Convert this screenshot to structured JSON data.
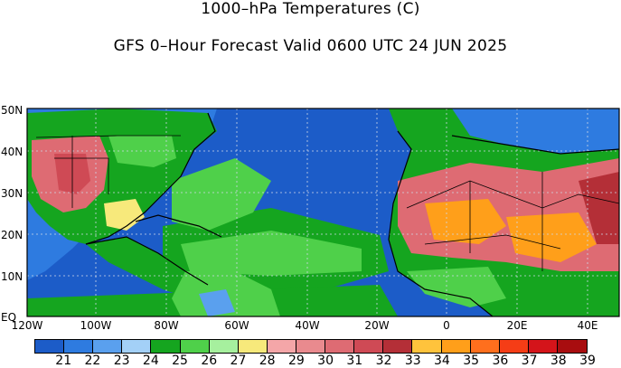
{
  "title": "1000–hPa Temperatures (C)",
  "subtitle": "GFS 0–Hour Forecast Valid 0600 UTC 24 JUN 2025",
  "lat_labels": [
    "50N",
    "40N",
    "30N",
    "20N",
    "10N",
    "EQ"
  ],
  "lon_labels": [
    "120W",
    "100W",
    "80W",
    "60W",
    "40W",
    "20W",
    "0",
    "20E",
    "40E"
  ],
  "colorbar": {
    "labels": [
      "21",
      "22",
      "23",
      "24",
      "25",
      "26",
      "27",
      "28",
      "29",
      "30",
      "31",
      "32",
      "33",
      "34",
      "35",
      "36",
      "37",
      "38",
      "39"
    ],
    "colors": [
      "#1c5cc8",
      "#2e7be0",
      "#5aa0ee",
      "#a3d0f7",
      "#15a51f",
      "#4fd04a",
      "#a6f09e",
      "#f7e97b",
      "#f4a6a8",
      "#e98a8e",
      "#de6b73",
      "#cf4a55",
      "#b42f37",
      "#ffc33c",
      "#ff9f1a",
      "#ff6f1d",
      "#f53d16",
      "#d4141a",
      "#a80d0f"
    ]
  },
  "map_colors": {
    "ocean": "#1c5cc8",
    "land_low": "#15a51f",
    "land_mid": "#4fd04a",
    "warm": "#de6b73",
    "hot": "#ff9f1a",
    "sea_cold": "#5aa0ee"
  }
}
